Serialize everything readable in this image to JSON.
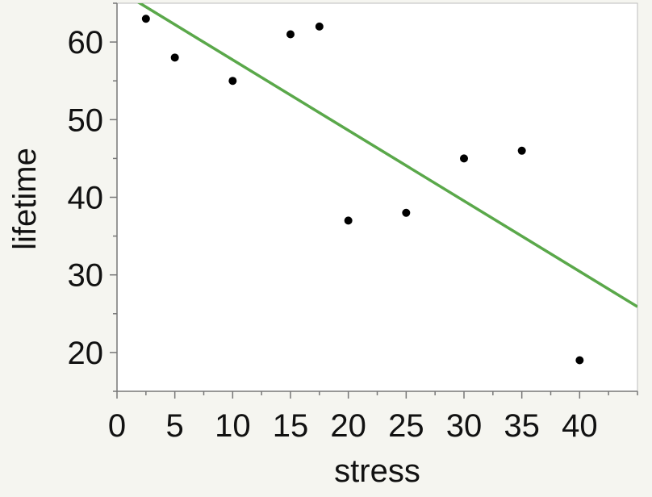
{
  "chart_data": {
    "type": "scatter",
    "title": "",
    "xlabel": "stress",
    "ylabel": "lifetime",
    "xlim": [
      0,
      45
    ],
    "ylim": [
      15,
      65
    ],
    "x_ticks": [
      0,
      5,
      10,
      15,
      20,
      25,
      30,
      35,
      40
    ],
    "x_tick_labels": [
      "0",
      "5",
      "10",
      "15",
      "20",
      "25",
      "30",
      "35",
      "40"
    ],
    "y_ticks": [
      20,
      30,
      40,
      50,
      60
    ],
    "y_tick_labels": [
      "20",
      "30",
      "40",
      "50",
      "60"
    ],
    "y_minor_step": 5,
    "x_minor_step": 2.5,
    "grid": false,
    "points": [
      {
        "x": 2.5,
        "y": 63
      },
      {
        "x": 5,
        "y": 58
      },
      {
        "x": 10,
        "y": 55
      },
      {
        "x": 15,
        "y": 61
      },
      {
        "x": 17.5,
        "y": 62
      },
      {
        "x": 20,
        "y": 37
      },
      {
        "x": 25,
        "y": 38
      },
      {
        "x": 30,
        "y": 45
      },
      {
        "x": 35,
        "y": 46
      },
      {
        "x": 40,
        "y": 19
      }
    ],
    "fit_line": {
      "x": [
        0,
        45
      ],
      "y": [
        66.8,
        25.9
      ]
    },
    "colors": {
      "points": "#000000",
      "fit_line": "#5aa84a",
      "plot_background": "#ffffff",
      "page_background": "#f5f5f0",
      "axis": "#777777"
    }
  }
}
